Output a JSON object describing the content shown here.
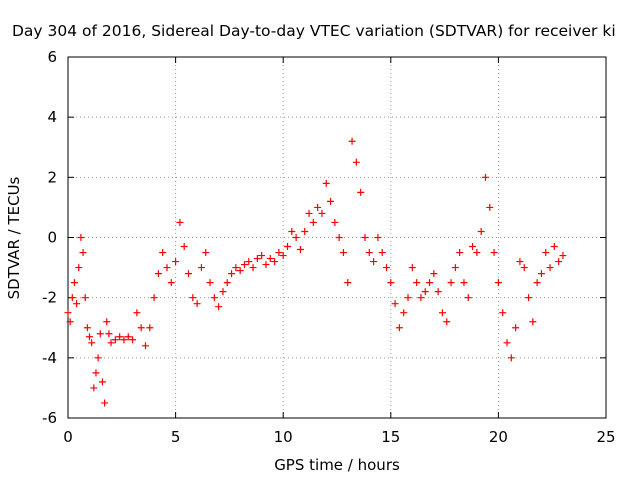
{
  "chart_data": {
    "type": "scatter",
    "title": "Day 304 of 2016, Sidereal Day-to-day VTEC variation (SDTVAR) for receiver ki",
    "xlabel": "GPS time / hours",
    "ylabel": "SDTVAR / TECUs",
    "xlim": [
      0,
      25
    ],
    "ylim": [
      -6,
      6
    ],
    "xticks": [
      0,
      5,
      10,
      15,
      20,
      25
    ],
    "yticks": [
      -6,
      -4,
      -2,
      0,
      2,
      4,
      6
    ],
    "grid": true,
    "marker": "+",
    "series": [
      {
        "name": "SDTVAR",
        "color": "#ff0000",
        "x": [
          0.0,
          0.1,
          0.2,
          0.3,
          0.4,
          0.5,
          0.6,
          0.7,
          0.8,
          0.9,
          1.0,
          1.1,
          1.2,
          1.3,
          1.4,
          1.5,
          1.6,
          1.7,
          1.8,
          1.9,
          2.0,
          2.2,
          2.4,
          2.6,
          2.8,
          3.0,
          3.2,
          3.4,
          3.6,
          3.8,
          4.0,
          4.2,
          4.4,
          4.6,
          4.8,
          5.0,
          5.2,
          5.4,
          5.6,
          5.8,
          6.0,
          6.2,
          6.4,
          6.6,
          6.8,
          7.0,
          7.2,
          7.4,
          7.6,
          7.8,
          8.0,
          8.2,
          8.4,
          8.6,
          8.8,
          9.0,
          9.2,
          9.4,
          9.6,
          9.8,
          10.0,
          10.2,
          10.4,
          10.6,
          10.8,
          11.0,
          11.2,
          11.4,
          11.6,
          11.8,
          12.0,
          12.2,
          12.4,
          12.6,
          12.8,
          13.0,
          13.2,
          13.4,
          13.6,
          13.8,
          14.0,
          14.2,
          14.4,
          14.6,
          14.8,
          15.0,
          15.2,
          15.4,
          15.6,
          15.8,
          16.0,
          16.2,
          16.4,
          16.6,
          16.8,
          17.0,
          17.2,
          17.4,
          17.6,
          17.8,
          18.0,
          18.2,
          18.4,
          18.6,
          18.8,
          19.0,
          19.2,
          19.4,
          19.6,
          19.8,
          20.0,
          20.2,
          20.4,
          20.6,
          20.8,
          21.0,
          21.2,
          21.4,
          21.6,
          21.8,
          22.0,
          22.2,
          22.4,
          22.6,
          22.8,
          23.0
        ],
        "y": [
          -2.5,
          -2.8,
          -2.0,
          -1.5,
          -2.2,
          -1.0,
          0.0,
          -0.5,
          -2.0,
          -3.0,
          -3.3,
          -3.5,
          -5.0,
          -4.5,
          -4.0,
          -3.2,
          -4.8,
          -5.5,
          -2.8,
          -3.2,
          -3.5,
          -3.4,
          -3.3,
          -3.4,
          -3.3,
          -3.4,
          -2.5,
          -3.0,
          -3.6,
          -3.0,
          -2.0,
          -1.2,
          -0.5,
          -1.0,
          -1.5,
          -0.8,
          0.5,
          -0.3,
          -1.2,
          -2.0,
          -2.2,
          -1.0,
          -0.5,
          -1.5,
          -2.0,
          -2.3,
          -1.8,
          -1.5,
          -1.2,
          -1.0,
          -1.1,
          -0.9,
          -0.8,
          -1.0,
          -0.7,
          -0.6,
          -0.9,
          -0.7,
          -0.8,
          -0.5,
          -0.6,
          -0.3,
          0.2,
          0.0,
          -0.4,
          0.2,
          0.8,
          0.5,
          1.0,
          0.8,
          1.8,
          1.2,
          0.5,
          0.0,
          -0.5,
          -1.5,
          3.2,
          2.5,
          1.5,
          0.0,
          -0.5,
          -0.8,
          0.0,
          -0.5,
          -1.0,
          -1.5,
          -2.2,
          -3.0,
          -2.5,
          -2.0,
          -1.0,
          -1.5,
          -2.0,
          -1.8,
          -1.5,
          -1.2,
          -1.8,
          -2.5,
          -2.8,
          -1.5,
          -1.0,
          -0.5,
          -1.5,
          -2.0,
          -0.3,
          -0.5,
          0.2,
          2.0,
          1.0,
          -0.5,
          -1.5,
          -2.5,
          -3.5,
          -4.0,
          -3.0,
          -0.8,
          -1.0,
          -2.0,
          -2.8,
          -1.5,
          -1.2,
          -0.5,
          -1.0,
          -0.3,
          -0.8,
          -0.6
        ]
      }
    ]
  }
}
